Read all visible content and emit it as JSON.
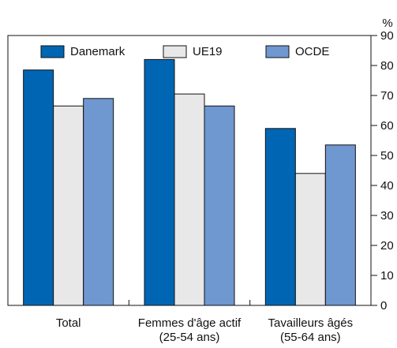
{
  "chart_data": {
    "type": "bar",
    "y_unit_label": "%",
    "categories": [
      [
        "Total"
      ],
      [
        "Femmes d'âge actif",
        "(25-54 ans)"
      ],
      [
        "Tavailleurs âgés",
        "(55-64 ans)"
      ]
    ],
    "series": [
      {
        "name": "Danemark",
        "color": "#0066b3",
        "values": [
          78.5,
          82,
          59
        ]
      },
      {
        "name": "UE19",
        "color": "#e8e8e8",
        "values": [
          66.5,
          70.5,
          44
        ]
      },
      {
        "name": "OCDE",
        "color": "#6f97d0",
        "values": [
          69,
          66.5,
          53.5
        ]
      }
    ],
    "ylim": [
      0,
      90
    ],
    "yticks": [
      0,
      10,
      20,
      30,
      40,
      50,
      60,
      70,
      80,
      90
    ],
    "legend": "top"
  }
}
